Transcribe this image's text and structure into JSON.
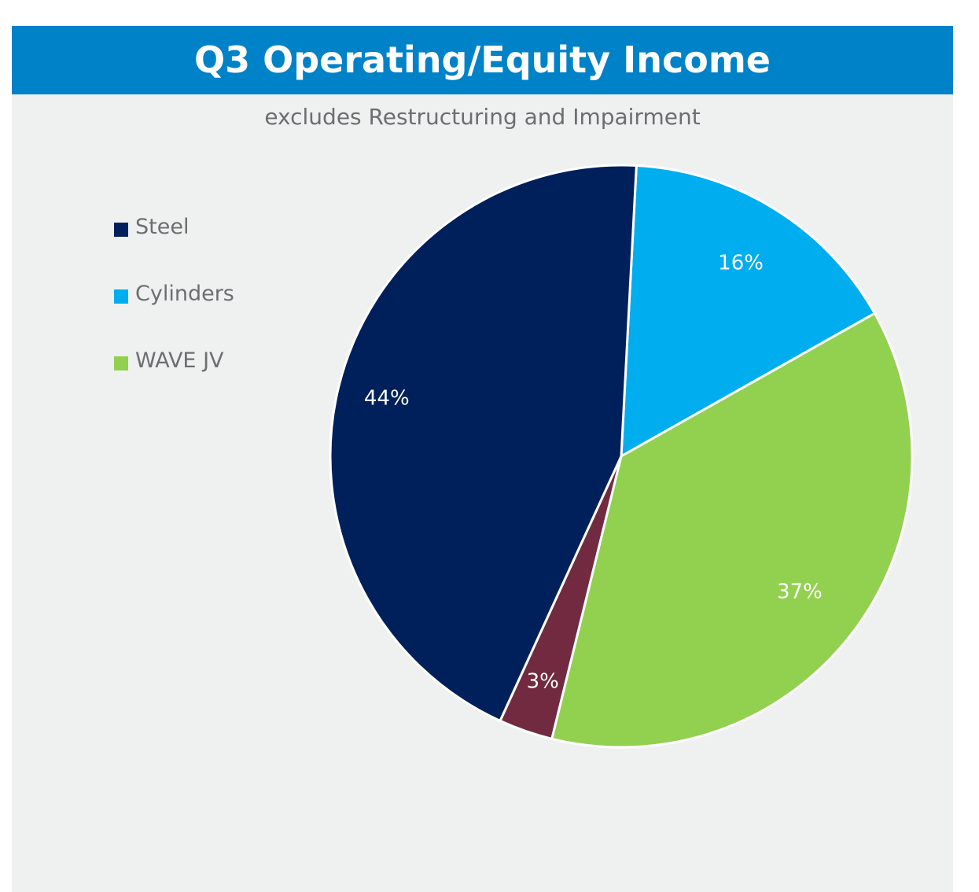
{
  "chart_data": {
    "type": "pie",
    "title": "Q3 Operating/Equity Income",
    "subtitle": "excludes Restructuring and Impairment",
    "slices": [
      {
        "name": "Cylinders",
        "value": 16,
        "label": "16%",
        "color": "#00adef"
      },
      {
        "name": "WAVE JV",
        "value": 37,
        "label": "37%",
        "color": "#92d050"
      },
      {
        "name": "",
        "value": 3,
        "label": "3%",
        "color": "#722a40"
      },
      {
        "name": "Steel",
        "value": 44,
        "label": "44%",
        "color": "#00205b"
      }
    ],
    "legend": [
      {
        "name": "Steel",
        "color": "#00205b"
      },
      {
        "name": "Cylinders",
        "color": "#00adef"
      },
      {
        "name": "WAVE JV",
        "color": "#92d050"
      }
    ],
    "legend_position": "left"
  },
  "colors": {
    "title_bar": "#0082c8",
    "panel_background": "#eff0f0",
    "subtitle_text": "#6d6e71",
    "slice_border": "#ffffff"
  }
}
